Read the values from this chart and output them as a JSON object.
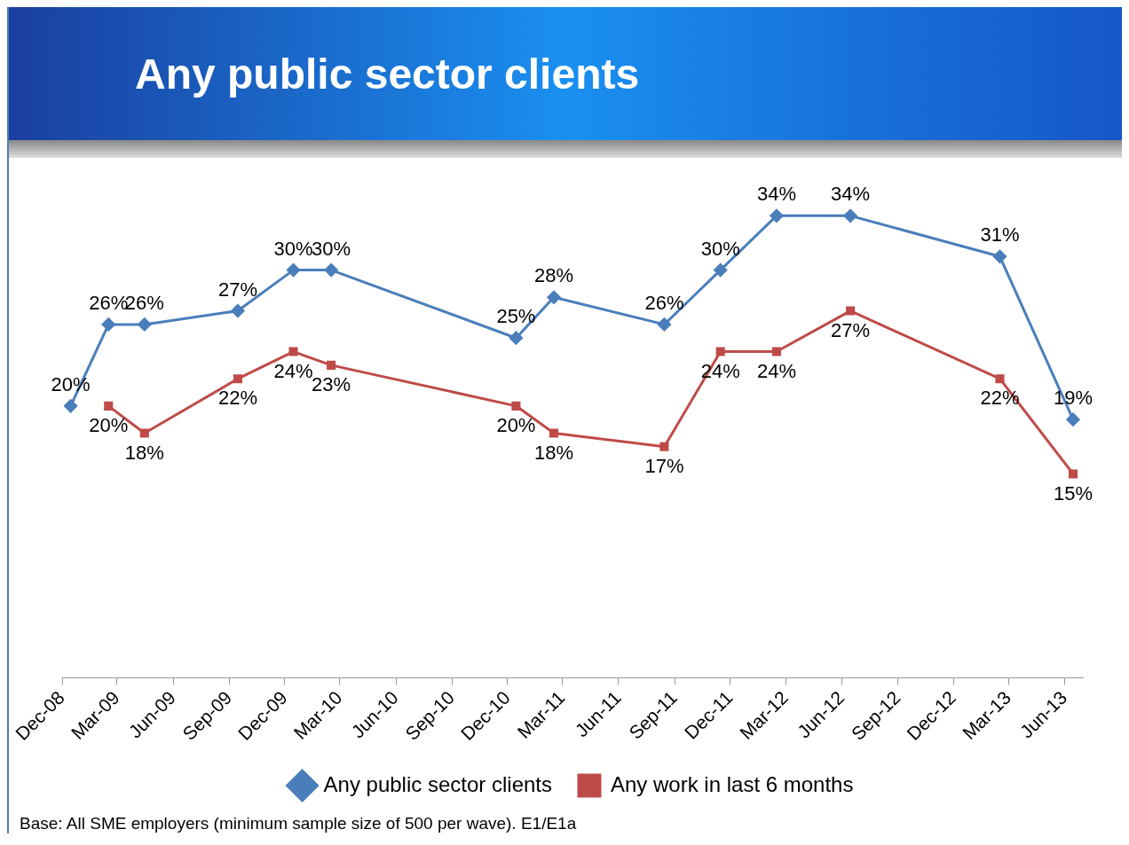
{
  "chart_data": {
    "type": "line",
    "title": "Any public sector clients",
    "xlim": [
      "2008-12-01",
      "2013-07-01"
    ],
    "xticks": [
      {
        "value": "2008-12-01",
        "label": "Dec-08"
      },
      {
        "value": "2009-03-01",
        "label": "Mar-09"
      },
      {
        "value": "2009-06-01",
        "label": "Jun-09"
      },
      {
        "value": "2009-09-01",
        "label": "Sep-09"
      },
      {
        "value": "2009-12-01",
        "label": "Dec-09"
      },
      {
        "value": "2010-03-01",
        "label": "Mar-10"
      },
      {
        "value": "2010-06-01",
        "label": "Jun-10"
      },
      {
        "value": "2010-09-01",
        "label": "Sep-10"
      },
      {
        "value": "2010-12-01",
        "label": "Dec-10"
      },
      {
        "value": "2011-03-01",
        "label": "Mar-11"
      },
      {
        "value": "2011-06-01",
        "label": "Jun-11"
      },
      {
        "value": "2011-09-01",
        "label": "Sep-11"
      },
      {
        "value": "2011-12-01",
        "label": "Dec-11"
      },
      {
        "value": "2012-03-01",
        "label": "Mar-12"
      },
      {
        "value": "2012-06-01",
        "label": "Jun-12"
      },
      {
        "value": "2012-09-01",
        "label": "Sep-12"
      },
      {
        "value": "2012-12-01",
        "label": "Dec-12"
      },
      {
        "value": "2013-03-01",
        "label": "Mar-13"
      },
      {
        "value": "2013-06-01",
        "label": "Jun-13"
      }
    ],
    "tick_labels": "x",
    "legend": "bottom",
    "series": [
      {
        "name": "Any public sector clients",
        "color": "#4a7ebb",
        "marker": "diamond",
        "x": [
          "2008-12-15",
          "2009-02-15",
          "2009-04-15",
          "2009-09-15",
          "2009-12-15",
          "2010-02-15",
          "2010-12-15",
          "2011-02-15",
          "2011-08-15",
          "2011-11-15",
          "2012-02-15",
          "2012-06-15",
          "2013-02-15",
          "2013-06-15"
        ],
        "values": [
          20,
          26,
          26,
          27,
          30,
          30,
          25,
          28,
          26,
          30,
          34,
          34,
          31,
          19
        ],
        "value_labels": [
          "20%",
          "26%",
          "26%",
          "27%",
          "30%",
          "30%",
          "25%",
          "28%",
          "26%",
          "30%",
          "34%",
          "34%",
          "31%",
          "19%"
        ]
      },
      {
        "name": "Any work in last 6 months",
        "color": "#be4b48",
        "marker": "square",
        "x": [
          "2009-02-15",
          "2009-04-15",
          "2009-09-15",
          "2009-12-15",
          "2010-02-15",
          "2010-12-15",
          "2011-02-15",
          "2011-08-15",
          "2011-11-15",
          "2012-02-15",
          "2012-06-15",
          "2013-02-15",
          "2013-06-15"
        ],
        "values": [
          20,
          18,
          22,
          24,
          23,
          20,
          18,
          17,
          24,
          24,
          27,
          22,
          15
        ],
        "value_labels": [
          "20%",
          "18%",
          "22%",
          "24%",
          "23%",
          "20%",
          "18%",
          "17%",
          "24%",
          "24%",
          "27%",
          "22%",
          "15%"
        ]
      }
    ],
    "annotations": [
      "Base: All SME employers (minimum sample size of 500 per wave). E1/E1a"
    ]
  }
}
